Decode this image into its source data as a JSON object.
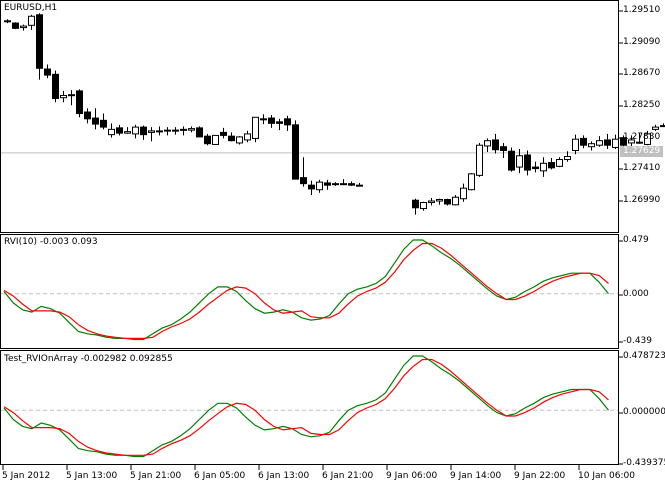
{
  "window": {
    "symbol_title": "EURUSD,H1"
  },
  "colors": {
    "up_fill": "#ffffff",
    "down_fill": "#000000",
    "main_line": "#008000",
    "signal_line": "#ff0000",
    "zero_line": "#c0c0c0",
    "price_line": "#c0c0c0"
  },
  "panels": {
    "main": {
      "title": "EURUSD,H1",
      "yticks": [
        "1.29510",
        "1.29090",
        "1.28670",
        "1.28250",
        "1.27830",
        "1.27410",
        "1.26990"
      ],
      "current_price": "1.27629"
    },
    "rvi": {
      "title": "RVI(10) -0.003 0.093",
      "yticks": [
        "0.479",
        "0.000",
        "-0.439"
      ]
    },
    "test": {
      "title": "Test_RVIOnArray -0.002982 0.092855",
      "yticks": [
        "0.478723",
        "0.000000",
        "-0.439375"
      ]
    }
  },
  "xaxis": {
    "ticks": [
      "5 Jan 2012",
      "5 Jan 13:00",
      "5 Jan 21:00",
      "6 Jan 05:00",
      "6 Jan 13:00",
      "6 Jan 21:00",
      "9 Jan 06:00",
      "9 Jan 14:00",
      "9 Jan 22:00",
      "10 Jan 06:00"
    ]
  },
  "chart_data": [
    {
      "type": "candlestick",
      "title": "EURUSD,H1",
      "ylim": [
        1.267,
        1.297
      ],
      "ylabel_ticks": [
        1.2951,
        1.2909,
        1.2867,
        1.2825,
        1.2783,
        1.2741,
        1.2699
      ],
      "current_price": 1.27629,
      "candles_ohlc": [
        [
          1.2938,
          1.294,
          1.2935,
          1.2937
        ],
        [
          1.2935,
          1.2936,
          1.2927,
          1.2928
        ],
        [
          1.2929,
          1.2933,
          1.2925,
          1.2931
        ],
        [
          1.2932,
          1.2946,
          1.2926,
          1.2944
        ],
        [
          1.2946,
          1.2948,
          1.286,
          1.2875
        ],
        [
          1.2874,
          1.288,
          1.2862,
          1.2866
        ],
        [
          1.2867,
          1.2872,
          1.283,
          1.2835
        ],
        [
          1.2836,
          1.2845,
          1.283,
          1.2839
        ],
        [
          1.284,
          1.2846,
          1.2826,
          1.2839
        ],
        [
          1.2845,
          1.2847,
          1.281,
          1.2815
        ],
        [
          1.2817,
          1.2822,
          1.2802,
          1.2808
        ],
        [
          1.2809,
          1.2822,
          1.2794,
          1.2801
        ],
        [
          1.2806,
          1.2815,
          1.2794,
          1.2797
        ],
        [
          1.2787,
          1.2802,
          1.2783,
          1.2794
        ],
        [
          1.2796,
          1.28,
          1.2786,
          1.2789
        ],
        [
          1.2789,
          1.2797,
          1.2788,
          1.2791
        ],
        [
          1.2788,
          1.28,
          1.2782,
          1.2797
        ],
        [
          1.2797,
          1.2799,
          1.278,
          1.2787
        ],
        [
          1.279,
          1.2797,
          1.2778,
          1.2792
        ],
        [
          1.2792,
          1.2798,
          1.2786,
          1.2792
        ],
        [
          1.2792,
          1.2797,
          1.2786,
          1.2793
        ],
        [
          1.2792,
          1.2797,
          1.2787,
          1.2793
        ],
        [
          1.2793,
          1.2798,
          1.2786,
          1.2794
        ],
        [
          1.2793,
          1.2798,
          1.279,
          1.2795
        ],
        [
          1.2796,
          1.2798,
          1.2784,
          1.2784
        ],
        [
          1.2785,
          1.2788,
          1.2773,
          1.2775
        ],
        [
          1.2774,
          1.2786,
          1.2774,
          1.2786
        ],
        [
          1.279,
          1.2796,
          1.2782,
          1.2786
        ],
        [
          1.2785,
          1.279,
          1.2778,
          1.2779
        ],
        [
          1.2776,
          1.2785,
          1.2774,
          1.2784
        ],
        [
          1.278,
          1.2792,
          1.2777,
          1.2788
        ],
        [
          1.2782,
          1.281,
          1.2777,
          1.281
        ],
        [
          1.2808,
          1.2814,
          1.2801,
          1.2808
        ],
        [
          1.2809,
          1.2813,
          1.2796,
          1.2802
        ],
        [
          1.2804,
          1.2808,
          1.2793,
          1.2802
        ],
        [
          1.2808,
          1.2812,
          1.2792,
          1.28
        ],
        [
          1.28,
          1.2806,
          1.2731,
          1.2728
        ],
        [
          1.273,
          1.2757,
          1.2718,
          1.2722
        ],
        [
          1.272,
          1.2726,
          1.2707,
          1.2715
        ],
        [
          1.2714,
          1.2727,
          1.271,
          1.2724
        ],
        [
          1.2723,
          1.2727,
          1.2714,
          1.272
        ],
        [
          1.2721,
          1.2724,
          1.2719,
          1.2722
        ],
        [
          1.2722,
          1.2728,
          1.272,
          1.2722
        ],
        [
          1.2722,
          1.2725,
          1.2719,
          1.272
        ],
        [
          1.272,
          1.2723,
          1.2719,
          1.272
        ],
        null,
        null,
        null,
        null,
        null,
        null,
        [
          1.27,
          1.2702,
          1.2681,
          1.269
        ],
        [
          1.2689,
          1.2698,
          1.2686,
          1.2697
        ],
        [
          1.2697,
          1.2703,
          1.2693,
          1.2699
        ],
        [
          1.2699,
          1.2702,
          1.2694,
          1.2701
        ],
        [
          1.2701,
          1.2702,
          1.2693,
          1.2695
        ],
        [
          1.2694,
          1.2707,
          1.2693,
          1.2704
        ],
        [
          1.2702,
          1.2722,
          1.2698,
          1.2716
        ],
        [
          1.2714,
          1.2736,
          1.2713,
          1.2735
        ],
        [
          1.2733,
          1.2776,
          1.2731,
          1.2773
        ],
        [
          1.2772,
          1.2782,
          1.2764,
          1.2779
        ],
        [
          1.278,
          1.2788,
          1.2762,
          1.2767
        ],
        [
          1.2771,
          1.2776,
          1.2756,
          1.2766
        ],
        [
          1.2765,
          1.277,
          1.2738,
          1.274
        ],
        [
          1.2744,
          1.2768,
          1.2736,
          1.2759
        ],
        [
          1.276,
          1.2766,
          1.2733,
          1.274
        ],
        [
          1.2744,
          1.2751,
          1.2737,
          1.2742
        ],
        [
          1.2739,
          1.2757,
          1.2731,
          1.2749
        ],
        [
          1.275,
          1.2756,
          1.2741,
          1.2743
        ],
        [
          1.2745,
          1.2757,
          1.2744,
          1.2754
        ],
        [
          1.2754,
          1.2765,
          1.2751,
          1.2758
        ],
        [
          1.2766,
          1.2787,
          1.2761,
          1.2781
        ],
        [
          1.2782,
          1.2786,
          1.2769,
          1.2773
        ],
        [
          1.2771,
          1.2778,
          1.2766,
          1.2775
        ],
        [
          1.2773,
          1.2785,
          1.2771,
          1.2779
        ],
        [
          1.278,
          1.2788,
          1.2768,
          1.2773
        ],
        [
          1.277,
          1.2787,
          1.2768,
          1.2781
        ],
        [
          1.2783,
          1.2786,
          1.2771,
          1.2773
        ],
        [
          1.2776,
          1.2786,
          1.2771,
          1.278
        ],
        [
          1.2777,
          1.2789,
          1.2775,
          1.2777
        ],
        [
          1.2774,
          1.2792,
          1.2773,
          1.2788
        ],
        [
          1.2794,
          1.28,
          1.2792,
          1.2797
        ],
        [
          1.2799,
          1.2802,
          1.2798,
          1.2799
        ],
        [
          1.28,
          1.2802,
          1.2763,
          1.2763
        ],
        [
          1.2764,
          1.2776,
          1.274,
          1.2764
        ],
        [
          1.2764,
          1.2766,
          1.2762,
          1.2764
        ]
      ]
    },
    {
      "type": "line",
      "title": "RVI(10) -0.003 0.093",
      "ylim": [
        -0.439,
        0.479
      ],
      "zero_line": 0.0,
      "series": [
        {
          "name": "RVI main",
          "color": "#008000",
          "values": [
            0.02,
            -0.08,
            -0.14,
            -0.16,
            -0.11,
            -0.13,
            -0.17,
            -0.25,
            -0.33,
            -0.35,
            -0.36,
            -0.38,
            -0.39,
            -0.39,
            -0.4,
            -0.4,
            -0.35,
            -0.3,
            -0.27,
            -0.22,
            -0.16,
            -0.08,
            -0.0,
            0.06,
            0.06,
            0.02,
            -0.06,
            -0.13,
            -0.17,
            -0.16,
            -0.14,
            -0.16,
            -0.21,
            -0.23,
            -0.22,
            -0.19,
            -0.09,
            0.0,
            0.04,
            0.06,
            0.09,
            0.15,
            0.27,
            0.39,
            0.47,
            0.47,
            0.42,
            0.36,
            0.31,
            0.25,
            0.18,
            0.11,
            0.04,
            -0.02,
            -0.05,
            -0.03,
            0.02,
            0.06,
            0.11,
            0.14,
            0.16,
            0.18,
            0.18,
            0.18,
            0.1,
            0.0
          ]
        },
        {
          "name": "RVI signal",
          "color": "#ff0000",
          "values": [
            0.03,
            -0.02,
            -0.09,
            -0.15,
            -0.15,
            -0.15,
            -0.16,
            -0.2,
            -0.27,
            -0.32,
            -0.35,
            -0.37,
            -0.38,
            -0.39,
            -0.39,
            -0.39,
            -0.38,
            -0.33,
            -0.29,
            -0.26,
            -0.22,
            -0.16,
            -0.09,
            -0.03,
            0.03,
            0.06,
            0.05,
            0.0,
            -0.08,
            -0.14,
            -0.17,
            -0.16,
            -0.15,
            -0.2,
            -0.21,
            -0.21,
            -0.17,
            -0.09,
            -0.02,
            0.02,
            0.05,
            0.1,
            0.19,
            0.3,
            0.38,
            0.44,
            0.44,
            0.4,
            0.34,
            0.27,
            0.2,
            0.13,
            0.06,
            0.0,
            -0.05,
            -0.05,
            -0.02,
            0.02,
            0.07,
            0.11,
            0.14,
            0.16,
            0.18,
            0.18,
            0.16,
            0.09
          ]
        }
      ]
    },
    {
      "type": "line",
      "title": "Test_RVIOnArray -0.002982 0.092855",
      "ylim": [
        -0.439375,
        0.478723
      ],
      "zero_line": 0.0,
      "series": [
        {
          "name": "RVIOnArray main",
          "color": "#008000",
          "values": "same as RVI main"
        },
        {
          "name": "RVIOnArray signal",
          "color": "#ff0000",
          "values": "same as RVI signal"
        }
      ]
    }
  ]
}
